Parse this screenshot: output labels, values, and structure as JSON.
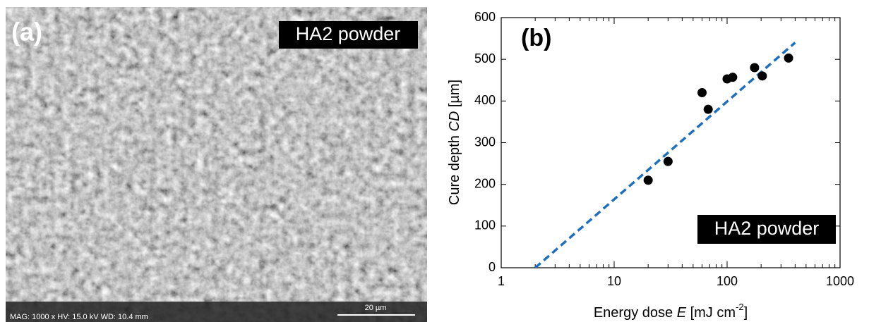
{
  "image_panel": {
    "label": "(a)",
    "tag": "HA2 powder",
    "info": "MAG: 1000 x  HV: 15.0 kV  WD: 10.4 mm",
    "scale_bar": "20 µm"
  },
  "chart_data": {
    "type": "scatter",
    "panel_label": "(b)",
    "annotation": "HA2 powder",
    "x_label": [
      "Energy dose ",
      "E",
      " [mJ cm",
      "-2",
      "]"
    ],
    "y_label": [
      "Cure depth ",
      "CD",
      " [µm]"
    ],
    "x_log": true,
    "xlim": [
      1,
      1000
    ],
    "xticks": [
      1,
      10,
      100,
      1000
    ],
    "ylim": [
      0,
      600
    ],
    "yticks": [
      0,
      100,
      200,
      300,
      400,
      500,
      600
    ],
    "points": {
      "color": "#000000",
      "x": [
        20,
        30,
        60,
        68,
        100,
        112,
        175,
        205,
        350
      ],
      "y": [
        210,
        255,
        420,
        380,
        453,
        457,
        480,
        460,
        503
      ]
    },
    "fit_line": {
      "color": "#1f6fbf",
      "dashed": true,
      "x": [
        2,
        400
      ],
      "y": [
        0,
        540
      ]
    }
  }
}
